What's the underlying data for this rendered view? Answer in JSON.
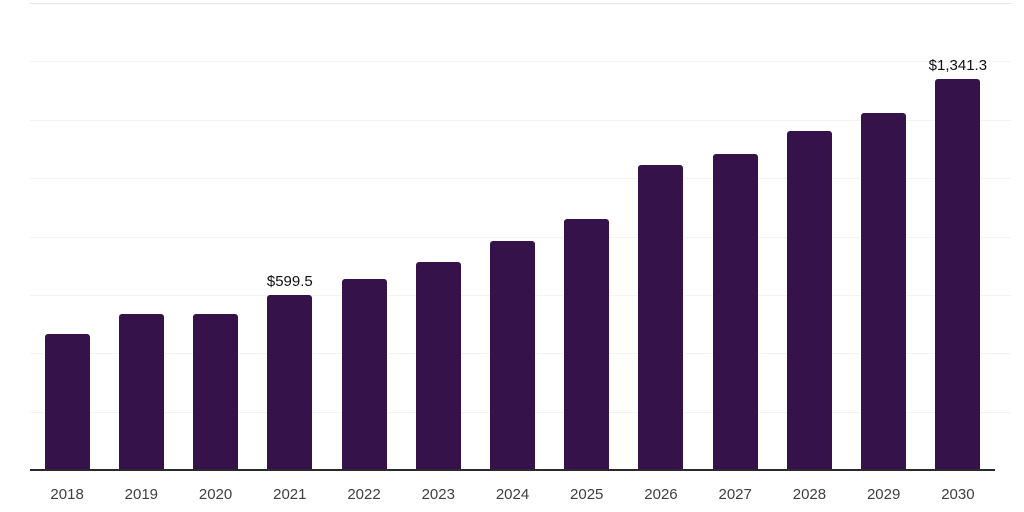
{
  "chart_data": {
    "type": "bar",
    "title": "",
    "xlabel": "",
    "ylabel": "",
    "categories": [
      "2018",
      "2019",
      "2020",
      "2021",
      "2022",
      "2023",
      "2024",
      "2025",
      "2026",
      "2027",
      "2028",
      "2029",
      "2030"
    ],
    "values": [
      466,
      534,
      535,
      599.5,
      654,
      711,
      783,
      860,
      1046,
      1081,
      1163,
      1223,
      1341.3
    ],
    "data_labels": [
      {
        "index": 3,
        "text": "$599.5"
      },
      {
        "index": 12,
        "text": "$1,341.3"
      }
    ],
    "ylim": [
      0,
      1600
    ],
    "grid_step": 200,
    "grid": "horizontal-only",
    "y_tick_labels_visible": false,
    "legend": "none",
    "colors": {
      "bar": "#35124A",
      "axis_line": "#2A2A2A",
      "gridline": "#F3F3F3",
      "top_gridline": "#E3E3E3",
      "tick_label": "#3F3F3F",
      "data_label": "#111111",
      "background": "#FFFFFF"
    }
  }
}
